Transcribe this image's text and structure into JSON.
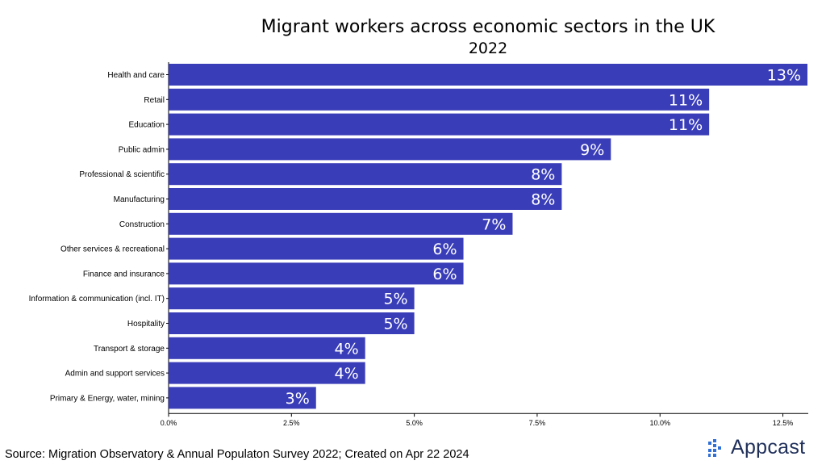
{
  "chart_data": {
    "type": "bar",
    "orientation": "horizontal",
    "title": "Migrant workers across economic sectors in the UK",
    "subtitle": "2022",
    "categories": [
      "Health and care",
      "Retail",
      "Education",
      "Public admin",
      "Professional & scientific",
      "Manufacturing",
      "Construction",
      "Other services & recreational",
      "Finance and insurance",
      "Information & communication (incl. IT)",
      "Hospitality",
      "Transport & storage",
      "Admin and support services",
      "Primary & Energy, water, mining"
    ],
    "values": [
      13,
      11,
      11,
      9,
      8,
      8,
      7,
      6,
      6,
      5,
      5,
      4,
      4,
      3
    ],
    "data_labels": [
      "13%",
      "11%",
      "11%",
      "9%",
      "8%",
      "8%",
      "7%",
      "6%",
      "6%",
      "5%",
      "5%",
      "4%",
      "4%",
      "3%"
    ],
    "xlim": [
      0,
      13
    ],
    "xticks": [
      0,
      2.5,
      5,
      7.5,
      10,
      12.5
    ],
    "xtick_labels": [
      "0.0%",
      "2.5%",
      "5.0%",
      "7.5%",
      "10.0%",
      "12.5%"
    ],
    "xlabel": "",
    "ylabel": "",
    "grid": false,
    "bar_color": "#3a3db8",
    "label_color": "#ffffff"
  },
  "footer": {
    "source": "Source: Migration Observatory & Annual Populaton Survey 2022; Created on Apr 22 2024",
    "brand": "Appcast",
    "brand_icon": "appcast-logo-icon",
    "brand_color": "#2f6fd6"
  }
}
